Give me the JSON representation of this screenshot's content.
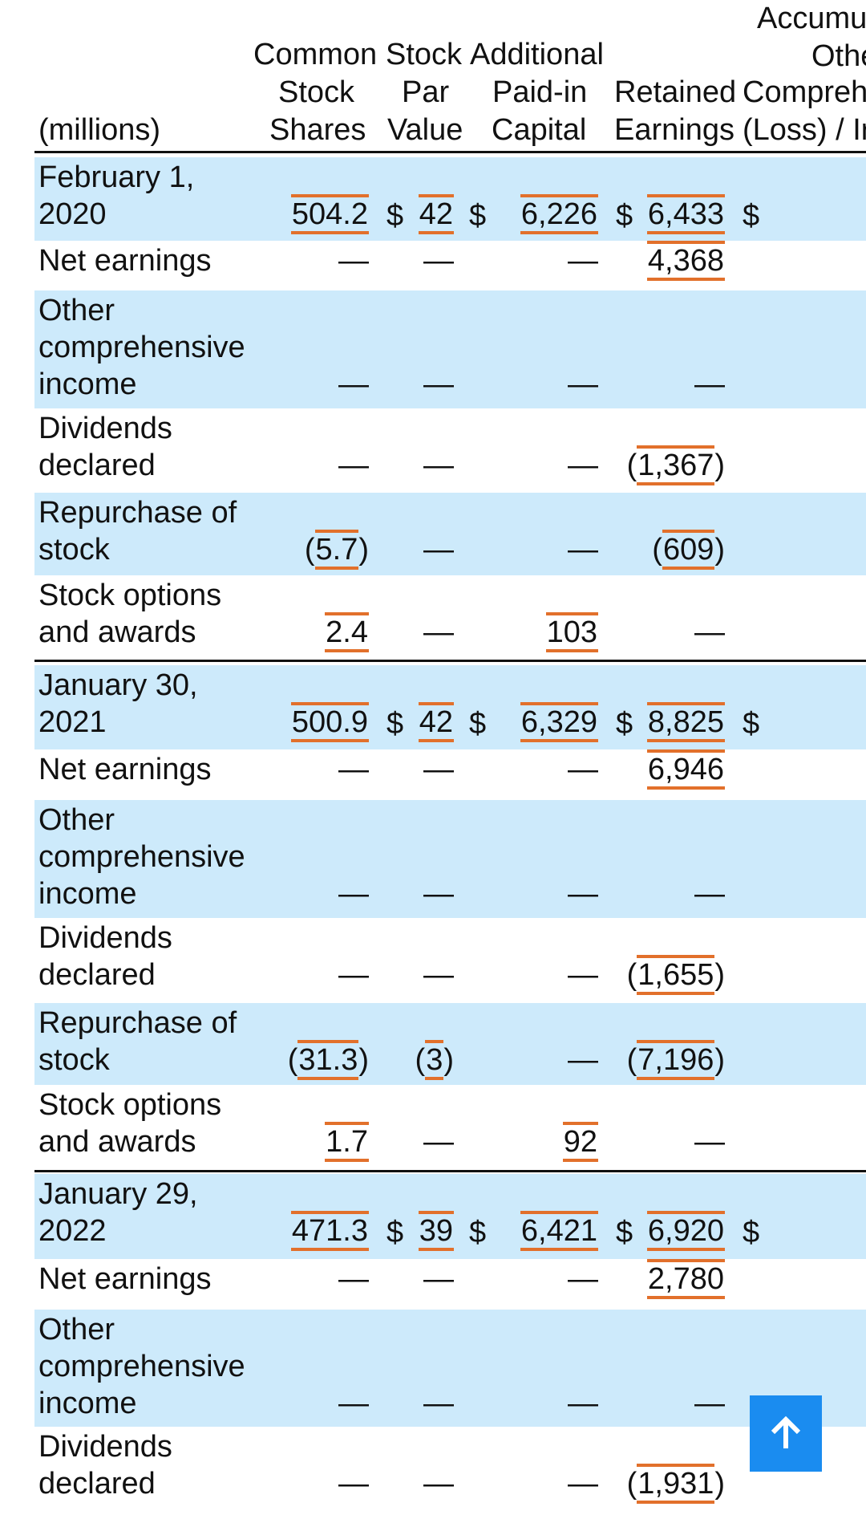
{
  "headers": {
    "col0": [
      "(millions)"
    ],
    "col1": [
      "Common",
      "Stock",
      "Shares"
    ],
    "col2": [
      "Stock",
      "Par",
      "Value"
    ],
    "col3": [
      "Additional",
      "Paid-in",
      "Capital"
    ],
    "col4": [
      "Retained",
      "Earnings"
    ],
    "col5": [
      "Accumu",
      "Othe",
      "Compreh",
      "(Loss) / Ir"
    ]
  },
  "colors": {
    "band": "#cdeafb",
    "highlight": "#e2702b",
    "button": "#1a8cf0"
  },
  "dollar": "$",
  "dash": "—",
  "rows": [
    {
      "label": [
        "February 1,",
        "2020"
      ],
      "shares": "504.2",
      "par": "42",
      "apic": "6,226",
      "retained": "6,433",
      "balance": true
    },
    {
      "label": [
        "Net earnings"
      ],
      "shares": "—",
      "par": "—",
      "apic": "—",
      "retained": "4,368"
    },
    {
      "label": [
        "Other",
        "comprehensive",
        "income"
      ],
      "shares": "—",
      "par": "—",
      "apic": "—",
      "retained": "—"
    },
    {
      "label": [
        "Dividends",
        "declared"
      ],
      "shares": "—",
      "par": "—",
      "apic": "—",
      "retained": "(1,367)"
    },
    {
      "label": [
        "Repurchase of",
        "stock"
      ],
      "shares": "(5.7)",
      "par": "—",
      "apic": "—",
      "retained": "(609)"
    },
    {
      "label": [
        "Stock options",
        "and awards"
      ],
      "shares": "2.4",
      "par": "—",
      "apic": "103",
      "retained": "—"
    },
    {
      "label": [
        "January 30,",
        "2021"
      ],
      "shares": "500.9",
      "par": "42",
      "apic": "6,329",
      "retained": "8,825",
      "balance": true
    },
    {
      "label": [
        "Net earnings"
      ],
      "shares": "—",
      "par": "—",
      "apic": "—",
      "retained": "6,946"
    },
    {
      "label": [
        "Other",
        "comprehensive",
        "income"
      ],
      "shares": "—",
      "par": "—",
      "apic": "—",
      "retained": "—"
    },
    {
      "label": [
        "Dividends",
        "declared"
      ],
      "shares": "—",
      "par": "—",
      "apic": "—",
      "retained": "(1,655)"
    },
    {
      "label": [
        "Repurchase of",
        "stock"
      ],
      "shares": "(31.3)",
      "par": "(3)",
      "apic": "—",
      "retained": "(7,196)"
    },
    {
      "label": [
        "Stock options",
        "and awards"
      ],
      "shares": "1.7",
      "par": "—",
      "apic": "92",
      "retained": "—"
    },
    {
      "label": [
        "January 29,",
        "2022"
      ],
      "shares": "471.3",
      "par": "39",
      "apic": "6,421",
      "retained": "6,920",
      "balance": true
    },
    {
      "label": [
        "Net earnings"
      ],
      "shares": "—",
      "par": "—",
      "apic": "—",
      "retained": "2,780"
    },
    {
      "label": [
        "Other",
        "comprehensive",
        "income"
      ],
      "shares": "—",
      "par": "—",
      "apic": "—",
      "retained": "—"
    },
    {
      "label": [
        "Dividends",
        "declared"
      ],
      "shares": "—",
      "par": "—",
      "apic": "—",
      "retained": "(1,931)"
    }
  ],
  "scroll_button": {
    "icon": "arrow-up-icon"
  }
}
